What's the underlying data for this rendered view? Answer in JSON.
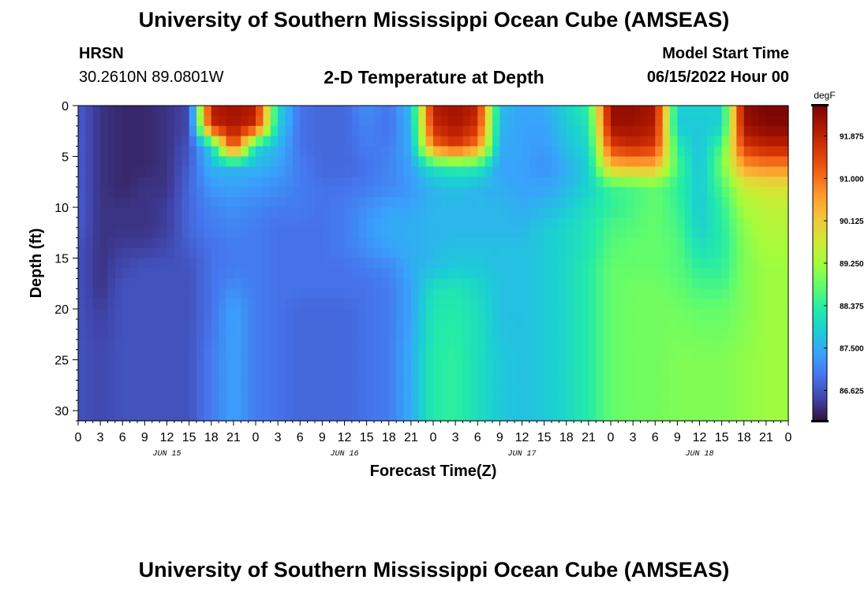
{
  "header": {
    "title": "University of Southern Mississippi Ocean Cube (AMSEAS)",
    "station": "HRSN",
    "coords": "30.2610N  89.0801W",
    "chart_name": "2-D Temperature at Depth",
    "model_label": "Model Start Time",
    "model_start": "06/15/2022 Hour 00"
  },
  "footer": {
    "title": "University of Southern Mississippi Ocean Cube (AMSEAS)"
  },
  "colors": {
    "scale": [
      "#30123b",
      "#4145ab",
      "#4675ed",
      "#39a2fc",
      "#1bcfd4",
      "#24eca6",
      "#61fc6c",
      "#a4fc3b",
      "#d1e834",
      "#f3c63a",
      "#fe9b2d",
      "#f36315",
      "#d93806",
      "#b11901",
      "#7a0403"
    ]
  },
  "chart_data": {
    "type": "heatmap",
    "title": "2-D Temperature at Depth",
    "xlabel": "Forecast Time(Z)",
    "ylabel": "Depth (ft)",
    "x_ticks": [
      "0",
      "3",
      "6",
      "9",
      "12",
      "15",
      "18",
      "21",
      "0",
      "3",
      "6",
      "9",
      "12",
      "15",
      "18",
      "21",
      "0",
      "3",
      "6",
      "9",
      "12",
      "15",
      "18",
      "21",
      "0",
      "3",
      "6",
      "9",
      "12",
      "15",
      "18",
      "21",
      "0"
    ],
    "day_labels": [
      {
        "label": "JUN 15",
        "hour": 12
      },
      {
        "label": "JUN 16",
        "hour": 36
      },
      {
        "label": "JUN 17",
        "hour": 60
      },
      {
        "label": "JUN 18",
        "hour": 84
      }
    ],
    "x_range_hours": [
      0,
      96
    ],
    "y_ticks": [
      0,
      5,
      10,
      15,
      20,
      25,
      30
    ],
    "y_range": [
      0,
      31
    ],
    "colorbar": {
      "unit": "degF",
      "min": 86.0,
      "max": 92.5,
      "tick_labels": [
        "91.875",
        "91.000",
        "90.125",
        "89.250",
        "88.375",
        "87.500",
        "86.625"
      ],
      "tick_values": [
        91.875,
        91.0,
        90.125,
        89.25,
        88.375,
        87.5,
        86.625
      ]
    },
    "depths_ft": [
      0,
      2,
      4,
      6,
      8,
      10,
      12,
      14,
      16,
      18,
      20,
      25,
      31
    ],
    "hours": [
      0,
      3,
      6,
      9,
      12,
      15,
      18,
      21,
      24,
      27,
      30,
      33,
      36,
      39,
      42,
      45,
      48,
      51,
      54,
      57,
      60,
      63,
      66,
      69,
      72,
      75,
      78,
      81,
      84,
      87,
      90,
      93,
      96
    ],
    "temperature_degF": [
      [
        86.7,
        86.3,
        86.2,
        86.2,
        86.3,
        86.5,
        92.0,
        92.2,
        92.0,
        88.0,
        86.9,
        86.8,
        86.8,
        87.2,
        86.9,
        87.7,
        92.0,
        92.2,
        91.9,
        87.7,
        87.4,
        87.5,
        87.9,
        88.4,
        92.3,
        92.3,
        92.1,
        87.9,
        87.9,
        87.9,
        92.3,
        92.5,
        92.5
      ],
      [
        86.7,
        86.3,
        86.2,
        86.2,
        86.3,
        86.5,
        91.8,
        92.1,
        91.8,
        87.9,
        86.9,
        86.8,
        86.8,
        87.1,
        86.9,
        87.6,
        91.8,
        92.1,
        91.7,
        87.6,
        87.4,
        87.4,
        87.8,
        88.2,
        92.2,
        92.2,
        92.0,
        87.8,
        87.8,
        87.9,
        92.2,
        92.4,
        92.4
      ],
      [
        86.7,
        86.3,
        86.2,
        86.2,
        86.3,
        86.6,
        87.9,
        91.6,
        88.0,
        87.6,
        86.9,
        86.8,
        86.8,
        87.0,
        87.0,
        87.5,
        91.0,
        91.6,
        90.9,
        87.5,
        87.4,
        87.3,
        87.7,
        88.0,
        91.5,
        91.8,
        91.6,
        88.3,
        87.7,
        88.6,
        91.6,
        91.9,
        91.9
      ],
      [
        86.7,
        86.3,
        86.2,
        86.2,
        86.3,
        86.7,
        87.6,
        87.6,
        87.6,
        87.4,
        87.0,
        86.8,
        86.8,
        86.9,
        87.1,
        87.4,
        88.2,
        88.4,
        88.3,
        87.4,
        87.4,
        87.2,
        87.5,
        87.9,
        90.3,
        90.4,
        90.4,
        88.6,
        87.7,
        88.9,
        90.6,
        90.8,
        90.8
      ],
      [
        86.7,
        86.3,
        86.2,
        86.3,
        86.3,
        86.8,
        87.3,
        87.4,
        87.3,
        87.2,
        87.0,
        86.9,
        86.9,
        87.0,
        87.1,
        87.3,
        87.6,
        87.7,
        87.6,
        87.5,
        87.4,
        87.4,
        87.6,
        87.9,
        88.5,
        88.6,
        88.8,
        88.4,
        87.8,
        88.6,
        89.6,
        89.8,
        89.8
      ],
      [
        86.7,
        86.3,
        86.3,
        86.3,
        86.4,
        86.8,
        87.1,
        87.2,
        87.1,
        87.0,
        87.0,
        86.9,
        87.0,
        87.2,
        87.4,
        87.4,
        87.6,
        87.6,
        87.6,
        87.6,
        87.5,
        87.6,
        87.8,
        88.1,
        88.4,
        88.6,
        88.8,
        88.5,
        87.8,
        88.4,
        89.3,
        89.5,
        89.5
      ],
      [
        86.7,
        86.3,
        86.3,
        86.3,
        86.4,
        86.8,
        87.0,
        87.1,
        87.0,
        86.9,
        86.9,
        86.9,
        87.0,
        87.3,
        87.5,
        87.5,
        87.6,
        87.6,
        87.6,
        87.6,
        87.6,
        87.8,
        88.0,
        88.2,
        88.6,
        88.7,
        88.8,
        88.6,
        87.9,
        88.3,
        89.1,
        89.4,
        89.4
      ],
      [
        86.6,
        86.3,
        86.4,
        86.4,
        86.5,
        86.7,
        86.9,
        87.0,
        87.0,
        86.9,
        86.9,
        86.9,
        87.0,
        87.2,
        87.4,
        87.5,
        87.6,
        87.7,
        87.7,
        87.7,
        87.7,
        87.8,
        88.0,
        88.2,
        88.7,
        88.8,
        88.8,
        88.7,
        88.1,
        88.3,
        89.0,
        89.3,
        89.3
      ],
      [
        86.6,
        86.3,
        86.5,
        86.6,
        86.6,
        86.6,
        86.9,
        87.0,
        87.0,
        86.9,
        86.9,
        86.9,
        86.9,
        87.0,
        87.1,
        87.5,
        87.7,
        87.8,
        87.8,
        87.7,
        87.7,
        87.8,
        88.0,
        88.3,
        88.8,
        88.8,
        88.8,
        88.7,
        88.4,
        88.4,
        89.0,
        89.2,
        89.2
      ],
      [
        86.6,
        86.3,
        86.6,
        86.6,
        86.6,
        86.6,
        86.9,
        87.2,
        87.0,
        86.9,
        86.9,
        86.9,
        86.9,
        86.9,
        87.0,
        87.4,
        88.1,
        88.2,
        88.0,
        87.7,
        87.7,
        87.8,
        88.0,
        88.3,
        88.8,
        88.9,
        88.9,
        88.8,
        88.6,
        88.6,
        89.0,
        89.2,
        89.2
      ],
      [
        86.6,
        86.4,
        86.6,
        86.6,
        86.6,
        86.6,
        86.9,
        87.4,
        87.0,
        86.9,
        86.8,
        86.8,
        86.8,
        86.9,
        87.0,
        87.4,
        88.2,
        88.3,
        88.1,
        87.7,
        87.7,
        87.8,
        88.0,
        88.3,
        88.8,
        88.9,
        88.9,
        88.9,
        88.8,
        88.8,
        89.0,
        89.2,
        89.2
      ],
      [
        86.6,
        86.5,
        86.6,
        86.6,
        86.6,
        86.6,
        87.0,
        87.4,
        87.0,
        86.9,
        86.8,
        86.8,
        86.8,
        86.9,
        87.0,
        87.5,
        88.3,
        88.4,
        88.1,
        87.8,
        87.7,
        87.8,
        88.0,
        88.3,
        88.8,
        88.9,
        88.9,
        89.0,
        89.0,
        89.0,
        89.1,
        89.2,
        89.2
      ],
      [
        86.6,
        86.5,
        86.6,
        86.6,
        86.6,
        86.6,
        87.0,
        87.4,
        87.0,
        86.9,
        86.8,
        86.8,
        86.8,
        86.9,
        87.0,
        87.5,
        88.3,
        88.4,
        88.1,
        87.8,
        87.7,
        87.8,
        88.0,
        88.3,
        88.8,
        88.9,
        88.9,
        89.0,
        89.0,
        89.0,
        89.1,
        89.2,
        89.2
      ]
    ]
  }
}
